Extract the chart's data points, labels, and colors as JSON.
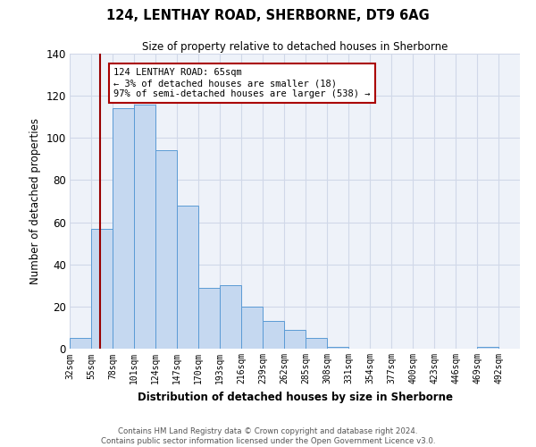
{
  "title": "124, LENTHAY ROAD, SHERBORNE, DT9 6AG",
  "subtitle": "Size of property relative to detached houses in Sherborne",
  "xlabel": "Distribution of detached houses by size in Sherborne",
  "ylabel": "Number of detached properties",
  "bin_labels": [
    "32sqm",
    "55sqm",
    "78sqm",
    "101sqm",
    "124sqm",
    "147sqm",
    "170sqm",
    "193sqm",
    "216sqm",
    "239sqm",
    "262sqm",
    "285sqm",
    "308sqm",
    "331sqm",
    "354sqm",
    "377sqm",
    "400sqm",
    "423sqm",
    "446sqm",
    "469sqm",
    "492sqm"
  ],
  "bin_edges": [
    32,
    55,
    78,
    101,
    124,
    147,
    170,
    193,
    216,
    239,
    262,
    285,
    308,
    331,
    354,
    377,
    400,
    423,
    446,
    469,
    492
  ],
  "bar_heights": [
    5,
    57,
    114,
    116,
    94,
    68,
    29,
    30,
    20,
    13,
    9,
    5,
    1,
    0,
    0,
    0,
    0,
    0,
    0,
    1
  ],
  "bar_color": "#c5d8f0",
  "bar_edge_color": "#5b9bd5",
  "grid_color": "#d0d8e8",
  "background_color": "#eef2f9",
  "vline_x": 65,
  "vline_color": "#990000",
  "annotation_text_line1": "124 LENTHAY ROAD: 65sqm",
  "annotation_text_line2": "← 3% of detached houses are smaller (18)",
  "annotation_text_line3": "97% of semi-detached houses are larger (538) →",
  "annotation_box_color": "#aa0000",
  "ylim": [
    0,
    140
  ],
  "yticks": [
    0,
    20,
    40,
    60,
    80,
    100,
    120,
    140
  ],
  "footer_line1": "Contains HM Land Registry data © Crown copyright and database right 2024.",
  "footer_line2": "Contains public sector information licensed under the Open Government Licence v3.0."
}
